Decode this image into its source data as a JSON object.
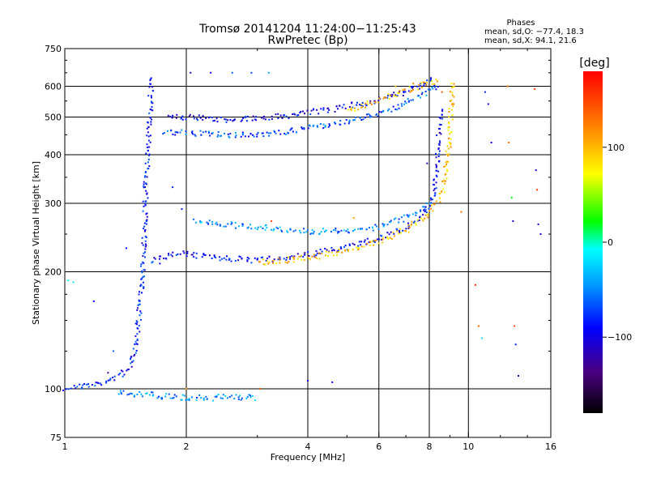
{
  "chart_data": {
    "type": "scatter",
    "title": "Tromsø 20141204 11:24:00−11:25:43",
    "subtitle": "RwPretec (Bp)",
    "xlabel": "Frequency [MHz]",
    "ylabel": "Stationary phase Virtual Height [km]",
    "x_scale": "log",
    "y_scale": "log",
    "xlim": [
      1,
      16
    ],
    "ylim": [
      75,
      750
    ],
    "x_ticks": [
      1,
      2,
      4,
      6,
      8,
      10,
      16
    ],
    "x_tick_labels": [
      "1",
      "2",
      "4",
      "6",
      "8",
      "10",
      "16"
    ],
    "y_ticks": [
      75,
      100,
      200,
      300,
      400,
      500,
      600,
      750
    ],
    "y_tick_labels": [
      "75",
      "100",
      "200",
      "300",
      "400",
      "500",
      "600",
      "750"
    ],
    "grid_x": [
      2,
      4,
      6,
      8,
      10
    ],
    "grid_y": [
      100,
      200,
      300,
      400,
      500,
      600
    ],
    "stats": {
      "heading": "Phases",
      "line_o": "mean, sd,O:  −77.4, 18.3",
      "line_x": "mean, sd,X:  94.1, 21.6"
    },
    "colorbar": {
      "label": "[deg]",
      "range": [
        -180,
        180
      ],
      "ticks": [
        100,
        0,
        -100
      ],
      "tick_labels": [
        "100",
        "0",
        "−100"
      ]
    },
    "traces": [
      {
        "name": "",
        "phase": -85,
        "points": [
          [
            1.0,
            101
          ],
          [
            1.2,
            103
          ],
          [
            1.35,
            108
          ],
          [
            1.45,
            115
          ],
          [
            1.5,
            135
          ],
          [
            1.53,
            165
          ],
          [
            1.55,
            200
          ],
          [
            1.57,
            260
          ],
          [
            1.58,
            330
          ],
          [
            1.6,
            420
          ],
          [
            1.62,
            520
          ],
          [
            1.63,
            640
          ]
        ]
      },
      {
        "name": "",
        "phase": -90,
        "points": [
          [
            1.63,
            215
          ],
          [
            1.9,
            225
          ],
          [
            2.2,
            220
          ],
          [
            3.0,
            215
          ],
          [
            4.0,
            222
          ],
          [
            5.0,
            233
          ],
          [
            6.0,
            245
          ],
          [
            7.0,
            262
          ],
          [
            7.8,
            285
          ],
          [
            8.2,
            320
          ],
          [
            8.35,
            400
          ],
          [
            8.45,
            470
          ],
          [
            8.5,
            530
          ]
        ]
      },
      {
        "name": "",
        "phase": -70,
        "points": [
          [
            1.75,
            460
          ],
          [
            2.2,
            455
          ],
          [
            3.0,
            450
          ],
          [
            4.0,
            470
          ],
          [
            5.0,
            490
          ],
          [
            6.0,
            515
          ],
          [
            7.0,
            545
          ],
          [
            8.0,
            590
          ],
          [
            8.4,
            610
          ]
        ]
      },
      {
        "name": "",
        "phase": -95,
        "points": [
          [
            1.8,
            505
          ],
          [
            2.5,
            495
          ],
          [
            3.5,
            505
          ],
          [
            4.5,
            525
          ],
          [
            5.5,
            545
          ],
          [
            6.5,
            570
          ],
          [
            7.5,
            600
          ],
          [
            8.2,
            630
          ]
        ]
      },
      {
        "name": "",
        "phase": -50,
        "points": [
          [
            2.1,
            270
          ],
          [
            3.0,
            262
          ],
          [
            4.0,
            255
          ],
          [
            5.0,
            256
          ],
          [
            6.0,
            262
          ],
          [
            7.0,
            278
          ],
          [
            8.0,
            300
          ]
        ]
      },
      {
        "name": "",
        "phase": 95,
        "points": [
          [
            3.0,
            212
          ],
          [
            4.0,
            218
          ],
          [
            5.0,
            228
          ],
          [
            6.0,
            240
          ],
          [
            7.0,
            258
          ],
          [
            8.0,
            285
          ],
          [
            8.6,
            320
          ],
          [
            8.85,
            400
          ],
          [
            9.0,
            480
          ],
          [
            9.05,
            560
          ],
          [
            9.1,
            620
          ]
        ]
      },
      {
        "name": "",
        "phase": 100,
        "points": [
          [
            5.0,
            520
          ],
          [
            6.0,
            555
          ],
          [
            7.0,
            585
          ],
          [
            7.8,
            615
          ],
          [
            8.4,
            625
          ]
        ]
      },
      {
        "name": "",
        "phase": -50,
        "points": [
          [
            1.35,
            98
          ],
          [
            1.6,
            97
          ],
          [
            1.8,
            96
          ],
          [
            2.2,
            95
          ],
          [
            2.6,
            96
          ],
          [
            3.0,
            95
          ]
        ]
      }
    ],
    "scattered_points": [
      [
        1.02,
        190,
        -10
      ],
      [
        1.05,
        188,
        -15
      ],
      [
        1.18,
        168,
        -95
      ],
      [
        1.28,
        110,
        -130
      ],
      [
        1.32,
        125,
        -60
      ],
      [
        1.42,
        230,
        -90
      ],
      [
        1.72,
        210,
        -100
      ],
      [
        1.85,
        330,
        -80
      ],
      [
        1.95,
        290,
        -85
      ],
      [
        2.0,
        100,
        110
      ],
      [
        2.05,
        650,
        -110
      ],
      [
        2.3,
        650,
        -100
      ],
      [
        2.6,
        650,
        -60
      ],
      [
        2.9,
        650,
        -70
      ],
      [
        3.2,
        650,
        -40
      ],
      [
        3.05,
        100,
        140
      ],
      [
        3.25,
        270,
        150
      ],
      [
        4.0,
        105,
        -100
      ],
      [
        4.6,
        104,
        -95
      ],
      [
        5.2,
        275,
        110
      ],
      [
        6.6,
        600,
        95
      ],
      [
        7.3,
        610,
        120
      ],
      [
        7.9,
        380,
        -110
      ],
      [
        8.6,
        580,
        140
      ],
      [
        9.6,
        285,
        130
      ],
      [
        10.4,
        185,
        160
      ],
      [
        10.6,
        145,
        135
      ],
      [
        10.8,
        135,
        -20
      ],
      [
        11.0,
        580,
        -80
      ],
      [
        11.2,
        540,
        -110
      ],
      [
        11.4,
        430,
        -100
      ],
      [
        12.5,
        600,
        125
      ],
      [
        12.6,
        430,
        130
      ],
      [
        12.8,
        310,
        20
      ],
      [
        12.9,
        270,
        -110
      ],
      [
        13.0,
        145,
        150
      ],
      [
        13.1,
        130,
        -80
      ],
      [
        13.3,
        108,
        -120
      ],
      [
        14.6,
        590,
        150
      ],
      [
        14.7,
        365,
        -100
      ],
      [
        14.8,
        325,
        160
      ],
      [
        14.9,
        265,
        -110
      ],
      [
        15.1,
        250,
        -100
      ]
    ]
  }
}
